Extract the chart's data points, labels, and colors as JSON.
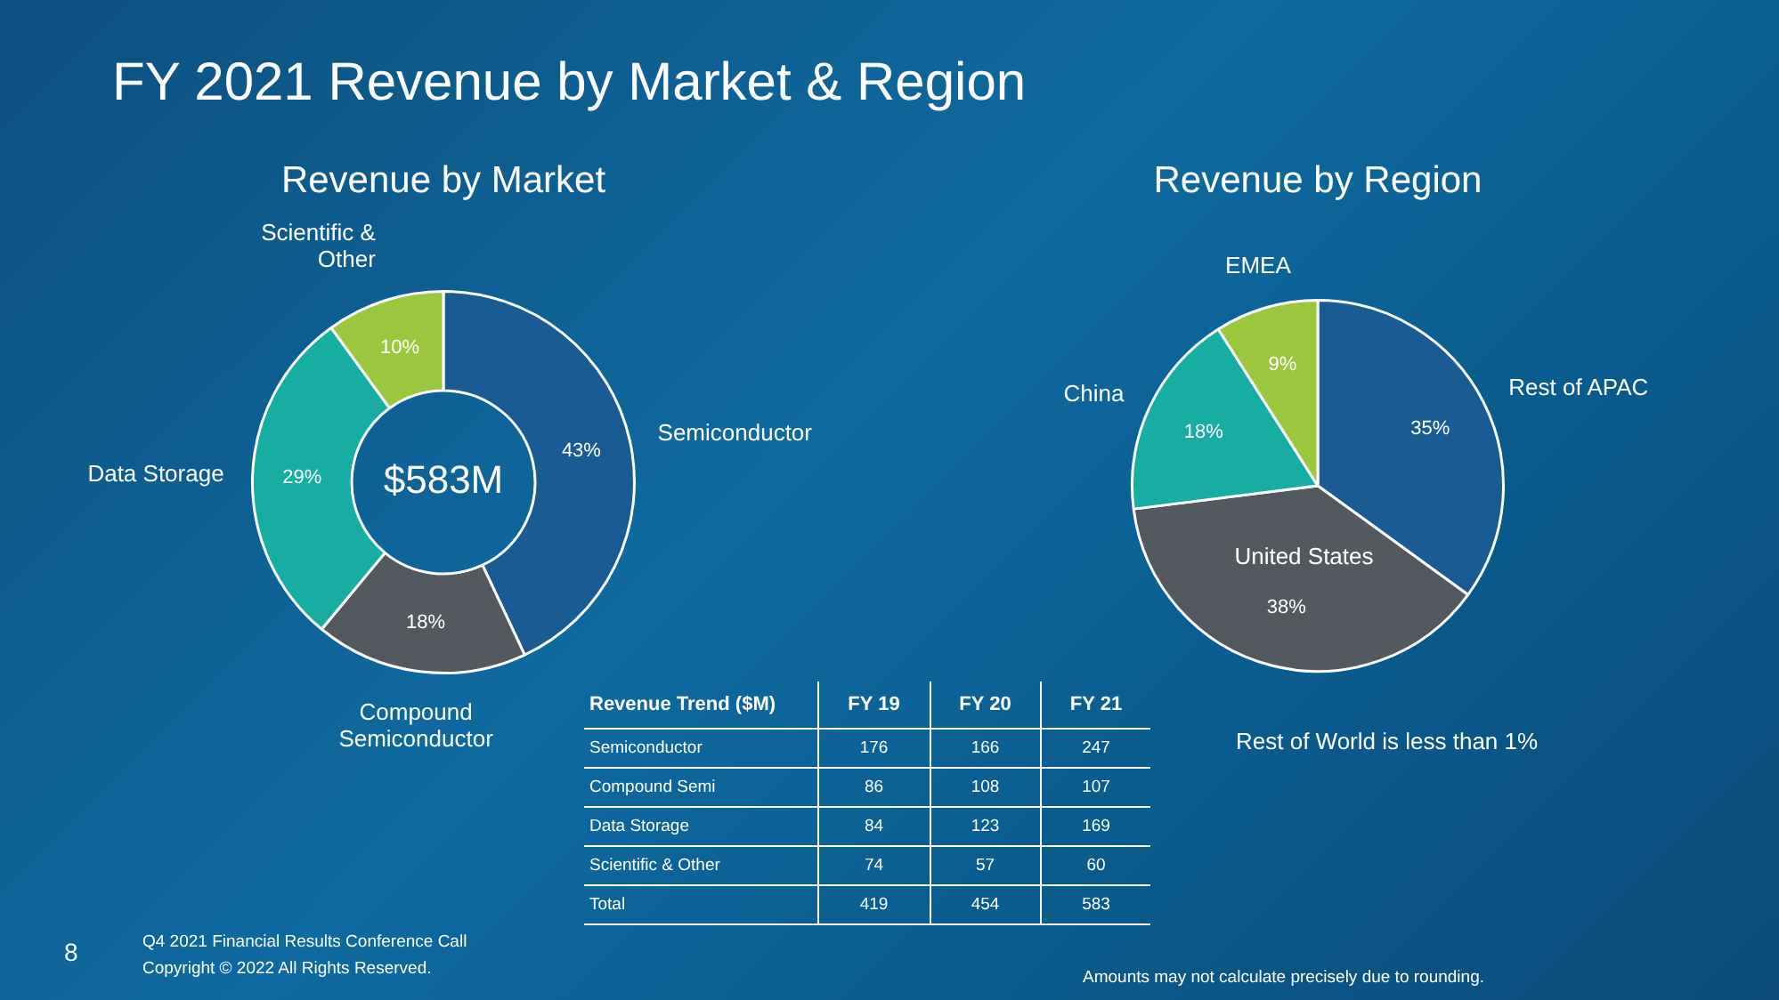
{
  "chart_data": [
    {
      "type": "donut",
      "title": "Revenue by Market",
      "categories": [
        "Semiconductor",
        "Compound Semiconductor",
        "Data Storage",
        "Scientific & Other"
      ],
      "values": [
        43,
        18,
        29,
        10
      ],
      "value_labels": [
        "43%",
        "18%",
        "29%",
        "10%"
      ],
      "colors": [
        "#1b5b94",
        "#54595f",
        "#18ada2",
        "#9cc63e"
      ],
      "legend": false,
      "annotations": [
        "$583M"
      ]
    },
    {
      "type": "pie",
      "title": "Revenue by Region",
      "categories": [
        "Rest of APAC",
        "United States",
        "China",
        "EMEA"
      ],
      "values": [
        35,
        38,
        18,
        9
      ],
      "value_labels": [
        "35%",
        "38%",
        "18%",
        "9%"
      ],
      "colors": [
        "#1b5b94",
        "#54595f",
        "#18ada2",
        "#9cc63e"
      ],
      "legend": false,
      "annotations": [
        "Rest of World is less than 1%",
        "Amounts may not calculate precisely due to rounding."
      ]
    },
    {
      "type": "other",
      "title": "Revenue Trend ($M)",
      "categories": [
        "Semiconductor",
        "Compound Semi",
        "Data Storage",
        "Scientific & Other",
        "Total"
      ],
      "data_labels": true,
      "series": [
        {
          "name": "FY 19",
          "values": [
            176,
            86,
            84,
            74,
            419
          ]
        },
        {
          "name": "FY 20",
          "values": [
            166,
            108,
            123,
            57,
            454
          ]
        },
        {
          "name": "FY 21",
          "values": [
            247,
            107,
            169,
            60,
            583
          ]
        }
      ],
      "annotations": [
        "FY 2021 Revenue by Market & Region",
        "8",
        "Q4 2021 Financial Results Conference Call",
        "Copyright © 2022 All Rights Reserved."
      ]
    }
  ]
}
